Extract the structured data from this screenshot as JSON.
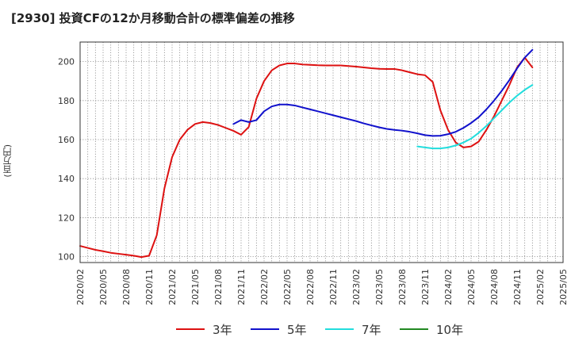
{
  "chart_data": {
    "type": "line",
    "title": "[2930]  投資CFの12か月移動合計の標準偏差の推移",
    "ylabel": "(百万円)",
    "xlabel": "",
    "ylim": [
      97,
      210
    ],
    "y_ticks": [
      100,
      120,
      140,
      160,
      180,
      200
    ],
    "x_tick_labels": [
      "2020/02",
      "2020/05",
      "2020/08",
      "2020/11",
      "2021/02",
      "2021/05",
      "2021/08",
      "2021/11",
      "2022/02",
      "2022/05",
      "2022/08",
      "2022/11",
      "2023/02",
      "2023/05",
      "2023/08",
      "2023/11",
      "2024/02",
      "2024/05",
      "2024/08",
      "2024/11",
      "2025/02",
      "2025/05"
    ],
    "grid": true,
    "legend_position": "bottom",
    "series": [
      {
        "name": "3年",
        "color": "#dd1111",
        "points": [
          [
            0,
            105.5
          ],
          [
            1,
            104.5
          ],
          [
            2,
            103.5
          ],
          [
            3,
            102.8
          ],
          [
            4,
            102.0
          ],
          [
            5,
            101.5
          ],
          [
            6,
            101.0
          ],
          [
            7,
            100.5
          ],
          [
            8,
            99.8
          ],
          [
            9,
            100.5
          ],
          [
            10,
            111.0
          ],
          [
            11,
            135.0
          ],
          [
            12,
            151.0
          ],
          [
            13,
            160.0
          ],
          [
            14,
            165.0
          ],
          [
            15,
            168.0
          ],
          [
            16,
            169.0
          ],
          [
            17,
            168.5
          ],
          [
            18,
            167.5
          ],
          [
            19,
            166.0
          ],
          [
            20,
            164.5
          ],
          [
            21,
            162.5
          ],
          [
            22,
            166.5
          ],
          [
            23,
            181.0
          ],
          [
            24,
            190.0
          ],
          [
            25,
            195.5
          ],
          [
            26,
            198.0
          ],
          [
            27,
            199.0
          ],
          [
            28,
            199.0
          ],
          [
            29,
            198.5
          ],
          [
            30,
            198.3
          ],
          [
            31,
            198.1
          ],
          [
            32,
            198.0
          ],
          [
            33,
            198.0
          ],
          [
            34,
            198.0
          ],
          [
            35,
            197.7
          ],
          [
            36,
            197.4
          ],
          [
            37,
            197.0
          ],
          [
            38,
            196.6
          ],
          [
            39,
            196.3
          ],
          [
            40,
            196.2
          ],
          [
            41,
            196.2
          ],
          [
            42,
            195.5
          ],
          [
            43,
            194.5
          ],
          [
            44,
            193.5
          ],
          [
            45,
            193.0
          ],
          [
            46,
            189.5
          ],
          [
            47,
            175.0
          ],
          [
            48,
            165.0
          ],
          [
            49,
            158.5
          ],
          [
            50,
            156.0
          ],
          [
            51,
            156.5
          ],
          [
            52,
            159.0
          ],
          [
            53,
            165.0
          ],
          [
            54,
            172.0
          ],
          [
            55,
            180.0
          ],
          [
            56,
            188.0
          ],
          [
            57,
            197.0
          ],
          [
            58,
            202.0
          ],
          [
            59,
            197.0
          ]
        ]
      },
      {
        "name": "5年",
        "color": "#1111cc",
        "points": [
          [
            20,
            168.0
          ],
          [
            21,
            170.0
          ],
          [
            22,
            169.0
          ],
          [
            23,
            170.0
          ],
          [
            24,
            174.5
          ],
          [
            25,
            177.0
          ],
          [
            26,
            178.0
          ],
          [
            27,
            178.0
          ],
          [
            28,
            177.5
          ],
          [
            29,
            176.5
          ],
          [
            30,
            175.5
          ],
          [
            31,
            174.5
          ],
          [
            32,
            173.5
          ],
          [
            33,
            172.5
          ],
          [
            34,
            171.5
          ],
          [
            35,
            170.5
          ],
          [
            36,
            169.5
          ],
          [
            37,
            168.3
          ],
          [
            38,
            167.3
          ],
          [
            39,
            166.3
          ],
          [
            40,
            165.5
          ],
          [
            41,
            165.0
          ],
          [
            42,
            164.6
          ],
          [
            43,
            164.0
          ],
          [
            44,
            163.2
          ],
          [
            45,
            162.3
          ],
          [
            46,
            161.9
          ],
          [
            47,
            162.0
          ],
          [
            48,
            162.8
          ],
          [
            49,
            164.0
          ],
          [
            50,
            166.0
          ],
          [
            51,
            168.5
          ],
          [
            52,
            171.5
          ],
          [
            53,
            175.5
          ],
          [
            54,
            180.0
          ],
          [
            55,
            185.0
          ],
          [
            56,
            190.5
          ],
          [
            57,
            196.5
          ],
          [
            58,
            202.0
          ],
          [
            59,
            206.0
          ]
        ]
      },
      {
        "name": "7年",
        "color": "#22dddd",
        "points": [
          [
            44,
            156.5
          ],
          [
            45,
            156.0
          ],
          [
            46,
            155.5
          ],
          [
            47,
            155.5
          ],
          [
            48,
            156.0
          ],
          [
            49,
            157.0
          ],
          [
            50,
            158.5
          ],
          [
            51,
            160.5
          ],
          [
            52,
            163.5
          ],
          [
            53,
            167.0
          ],
          [
            54,
            171.0
          ],
          [
            55,
            175.0
          ],
          [
            56,
            179.0
          ],
          [
            57,
            182.5
          ],
          [
            58,
            185.5
          ],
          [
            59,
            188.0
          ]
        ]
      },
      {
        "name": "10年",
        "color": "#228822",
        "points": []
      }
    ]
  }
}
